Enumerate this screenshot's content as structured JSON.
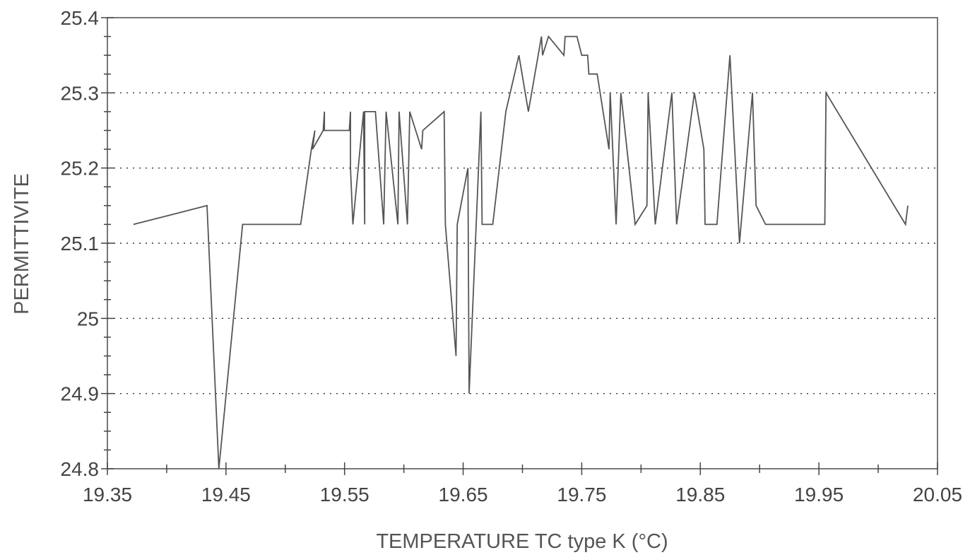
{
  "chart_data": {
    "type": "line",
    "title": "",
    "xlabel": "TEMPERATURE TC type K (°C)",
    "ylabel": "PERMITTIVITE",
    "xlim": [
      19.35,
      20.05
    ],
    "ylim": [
      24.8,
      25.4
    ],
    "x_ticks": [
      "19.35",
      "19.45",
      "19.55",
      "19.65",
      "19.75",
      "19.85",
      "19.95",
      "20.05"
    ],
    "y_ticks": [
      "24.8",
      "24.9",
      "25",
      "25.1",
      "25.2",
      "25.3",
      "25.4"
    ],
    "grid": "horizontal dotted",
    "legend": "none",
    "series": [
      {
        "x": [
          19.372,
          19.434,
          19.444,
          19.464,
          19.513,
          19.522,
          19.525,
          19.523,
          19.532,
          19.533,
          19.533,
          19.538,
          19.554,
          19.555,
          19.555,
          19.557,
          19.566,
          19.567,
          19.567,
          19.576,
          19.583,
          19.585,
          19.595,
          19.596,
          19.603,
          19.605,
          19.615,
          19.616,
          19.634,
          19.635,
          19.644,
          19.645,
          19.654,
          19.655,
          19.665,
          19.666,
          19.675,
          19.686,
          19.697,
          19.705,
          19.716,
          19.717,
          19.722,
          19.735,
          19.736,
          19.746,
          19.75,
          19.755,
          19.756,
          19.763,
          19.773,
          19.774,
          19.779,
          19.783,
          19.795,
          19.805,
          19.806,
          19.812,
          19.826,
          19.83,
          19.845,
          19.853,
          19.854,
          19.859,
          19.864,
          19.875,
          19.883,
          19.894,
          19.897,
          19.905,
          19.955,
          19.956,
          20.023,
          20.025
        ],
        "y": [
          25.125,
          25.15,
          24.8,
          25.125,
          25.125,
          25.225,
          25.25,
          25.225,
          25.25,
          25.275,
          25.25,
          25.25,
          25.25,
          25.275,
          25.2,
          25.125,
          25.275,
          25.125,
          25.275,
          25.275,
          25.125,
          25.275,
          25.125,
          25.275,
          25.125,
          25.275,
          25.225,
          25.25,
          25.275,
          25.125,
          24.95,
          25.125,
          25.2,
          24.9,
          25.275,
          25.125,
          25.125,
          25.275,
          25.35,
          25.275,
          25.375,
          25.35,
          25.375,
          25.35,
          25.375,
          25.375,
          25.35,
          25.35,
          25.325,
          25.325,
          25.225,
          25.3,
          25.125,
          25.3,
          25.125,
          25.15,
          25.3,
          25.125,
          25.3,
          25.125,
          25.3,
          25.225,
          25.125,
          25.125,
          25.125,
          25.35,
          25.1,
          25.3,
          25.15,
          25.125,
          25.125,
          25.3,
          25.125,
          25.15
        ]
      }
    ]
  }
}
